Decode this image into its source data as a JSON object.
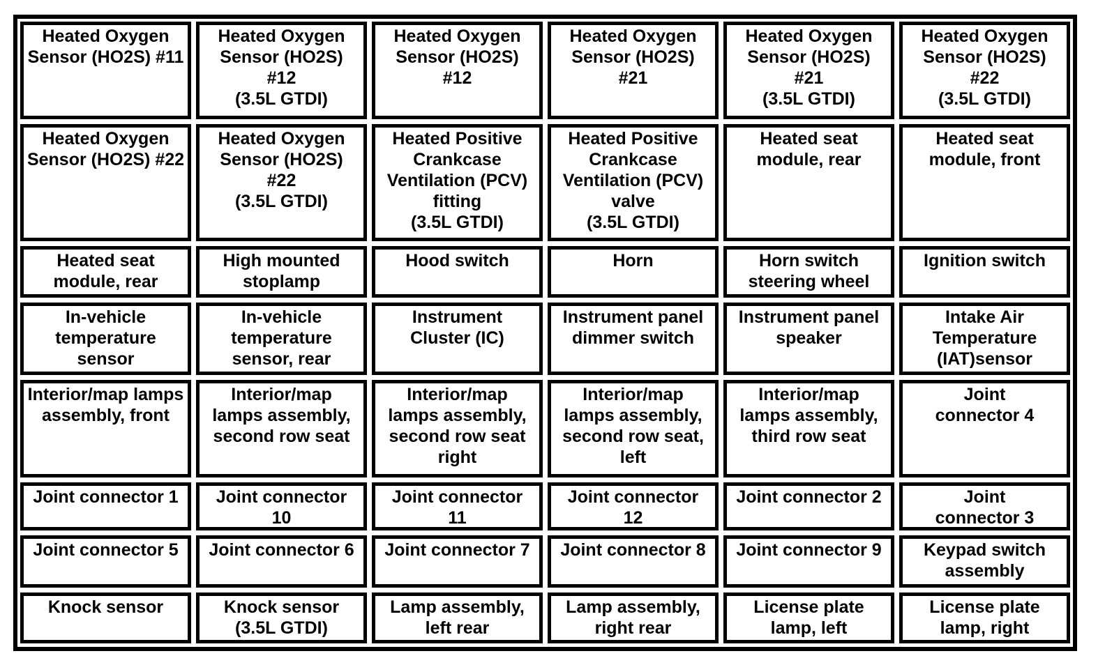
{
  "page": {
    "background_color": "#ffffff",
    "border_color": "#000000",
    "text_color": "#000000"
  },
  "table": {
    "columns": 6,
    "rows": [
      {
        "cells": [
          "Heated Oxygen\nSensor (HO2S) #11",
          "Heated Oxygen\nSensor (HO2S)\n#12\n(3.5L GTDI)",
          "Heated Oxygen\nSensor (HO2S)\n#12",
          "Heated Oxygen\nSensor (HO2S)\n#21",
          "Heated Oxygen\nSensor (HO2S)\n#21\n(3.5L GTDI)",
          "Heated Oxygen\nSensor (HO2S)\n#22\n(3.5L GTDI)"
        ]
      },
      {
        "cells": [
          "Heated Oxygen\nSensor (HO2S) #22",
          "Heated Oxygen\nSensor (HO2S)\n#22\n(3.5L GTDI)",
          "Heated Positive\nCrankcase\nVentilation (PCV)\nfitting\n(3.5L GTDI)",
          "Heated Positive\nCrankcase\nVentilation (PCV)\nvalve\n(3.5L GTDI)",
          "Heated seat\nmodule, rear",
          "Heated seat\nmodule, front"
        ]
      },
      {
        "cells": [
          "Heated seat\nmodule, rear",
          "High mounted\nstoplamp",
          "Hood switch",
          "Horn",
          "Horn switch\nsteering wheel",
          "Ignition switch"
        ]
      },
      {
        "cells": [
          "In-vehicle\ntemperature\nsensor",
          "In-vehicle\ntemperature\nsensor, rear",
          "Instrument\nCluster (IC)",
          "Instrument panel\ndimmer switch",
          "Instrument panel\nspeaker",
          "Intake Air\nTemperature\n(IAT)sensor"
        ]
      },
      {
        "cells": [
          "Interior/map lamps\nassembly, front",
          "Interior/map\nlamps assembly,\nsecond row seat",
          "Interior/map\nlamps assembly,\nsecond row seat\nright",
          "Interior/map\nlamps assembly,\nsecond row seat,\nleft",
          "Interior/map\nlamps assembly,\nthird row seat",
          "Joint\nconnector 4"
        ]
      },
      {
        "cells": [
          "Joint connector 1",
          "Joint connector\n10",
          "Joint connector\n11",
          "Joint connector\n12",
          "Joint connector 2",
          "Joint\nconnector 3"
        ]
      },
      {
        "cells": [
          "Joint connector 5",
          "Joint connector 6",
          "Joint connector 7",
          "Joint connector 8",
          "Joint connector 9",
          "Keypad switch\nassembly"
        ]
      },
      {
        "cells": [
          "Knock sensor",
          "Knock sensor\n(3.5L GTDI)",
          "Lamp assembly,\nleft rear",
          "Lamp assembly,\nright rear",
          "License plate\nlamp, left",
          "License plate\nlamp, right"
        ]
      }
    ]
  }
}
